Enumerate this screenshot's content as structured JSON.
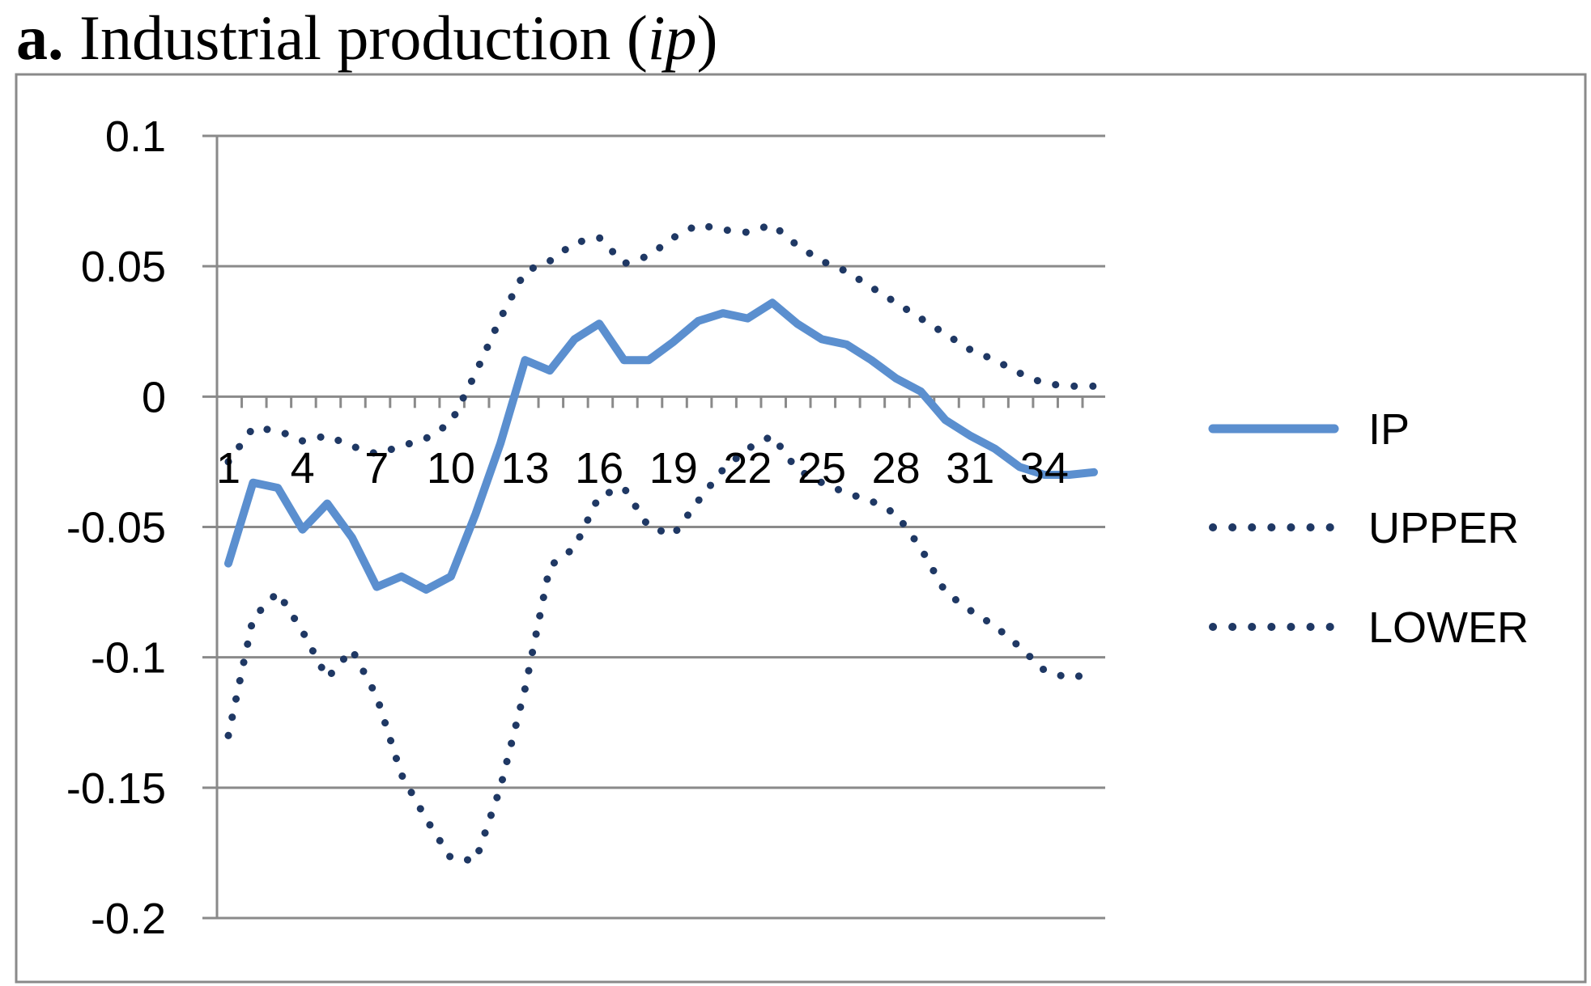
{
  "figure": {
    "label": "a.",
    "title_main": "Industrial production (",
    "title_italic": "ip",
    "title_close": ")"
  },
  "chart_data": {
    "type": "line",
    "title": "a. Industrial production (ip)",
    "xlabel": "",
    "ylabel": "",
    "x": [
      1,
      2,
      3,
      4,
      5,
      6,
      7,
      8,
      9,
      10,
      11,
      12,
      13,
      14,
      15,
      16,
      17,
      18,
      19,
      20,
      21,
      22,
      23,
      24,
      25,
      26,
      27,
      28,
      29,
      30,
      31,
      32,
      33,
      34,
      35,
      36
    ],
    "x_tick_labels": [
      "1",
      "4",
      "7",
      "10",
      "13",
      "16",
      "19",
      "22",
      "25",
      "28",
      "31",
      "34"
    ],
    "x_tick_values": [
      1,
      4,
      7,
      10,
      13,
      16,
      19,
      22,
      25,
      28,
      31,
      34
    ],
    "ylim": [
      -0.2,
      0.1
    ],
    "y_ticks": [
      0.1,
      0.05,
      0,
      -0.05,
      -0.1,
      -0.15,
      -0.2
    ],
    "y_tick_labels": [
      "0.1",
      "0.05",
      "0",
      "-0.05",
      "-0.1",
      "-0.15",
      "-0.2"
    ],
    "grid": "horizontal",
    "legend_position": "right",
    "series": [
      {
        "name": "IP",
        "style": "solid",
        "color": "#5b8fcf",
        "values": [
          -0.064,
          -0.033,
          -0.035,
          -0.051,
          -0.041,
          -0.054,
          -0.073,
          -0.069,
          -0.074,
          -0.069,
          -0.045,
          -0.018,
          0.014,
          0.01,
          0.022,
          0.028,
          0.014,
          0.014,
          0.021,
          0.029,
          0.032,
          0.03,
          0.036,
          0.028,
          0.022,
          0.02,
          0.014,
          0.007,
          0.002,
          -0.009,
          -0.015,
          -0.02,
          -0.027,
          -0.03,
          -0.03,
          -0.029
        ]
      },
      {
        "name": "UPPER",
        "style": "dotted",
        "color": "#1f3864",
        "values": [
          -0.025,
          -0.012,
          -0.013,
          -0.017,
          -0.015,
          -0.019,
          -0.022,
          -0.019,
          -0.016,
          -0.01,
          0.009,
          0.03,
          0.048,
          0.052,
          0.059,
          0.061,
          0.051,
          0.054,
          0.061,
          0.066,
          0.064,
          0.063,
          0.066,
          0.058,
          0.052,
          0.048,
          0.042,
          0.036,
          0.03,
          0.024,
          0.018,
          0.014,
          0.009,
          0.005,
          0.004,
          0.004
        ]
      },
      {
        "name": "LOWER",
        "style": "dotted",
        "color": "#1f3864",
        "values": [
          -0.13,
          -0.085,
          -0.075,
          -0.09,
          -0.108,
          -0.097,
          -0.115,
          -0.145,
          -0.162,
          -0.177,
          -0.178,
          -0.15,
          -0.112,
          -0.065,
          -0.058,
          -0.038,
          -0.035,
          -0.05,
          -0.053,
          -0.04,
          -0.028,
          -0.02,
          -0.015,
          -0.028,
          -0.033,
          -0.037,
          -0.04,
          -0.045,
          -0.058,
          -0.075,
          -0.082,
          -0.088,
          -0.096,
          -0.105,
          -0.108,
          -0.106
        ]
      }
    ]
  }
}
